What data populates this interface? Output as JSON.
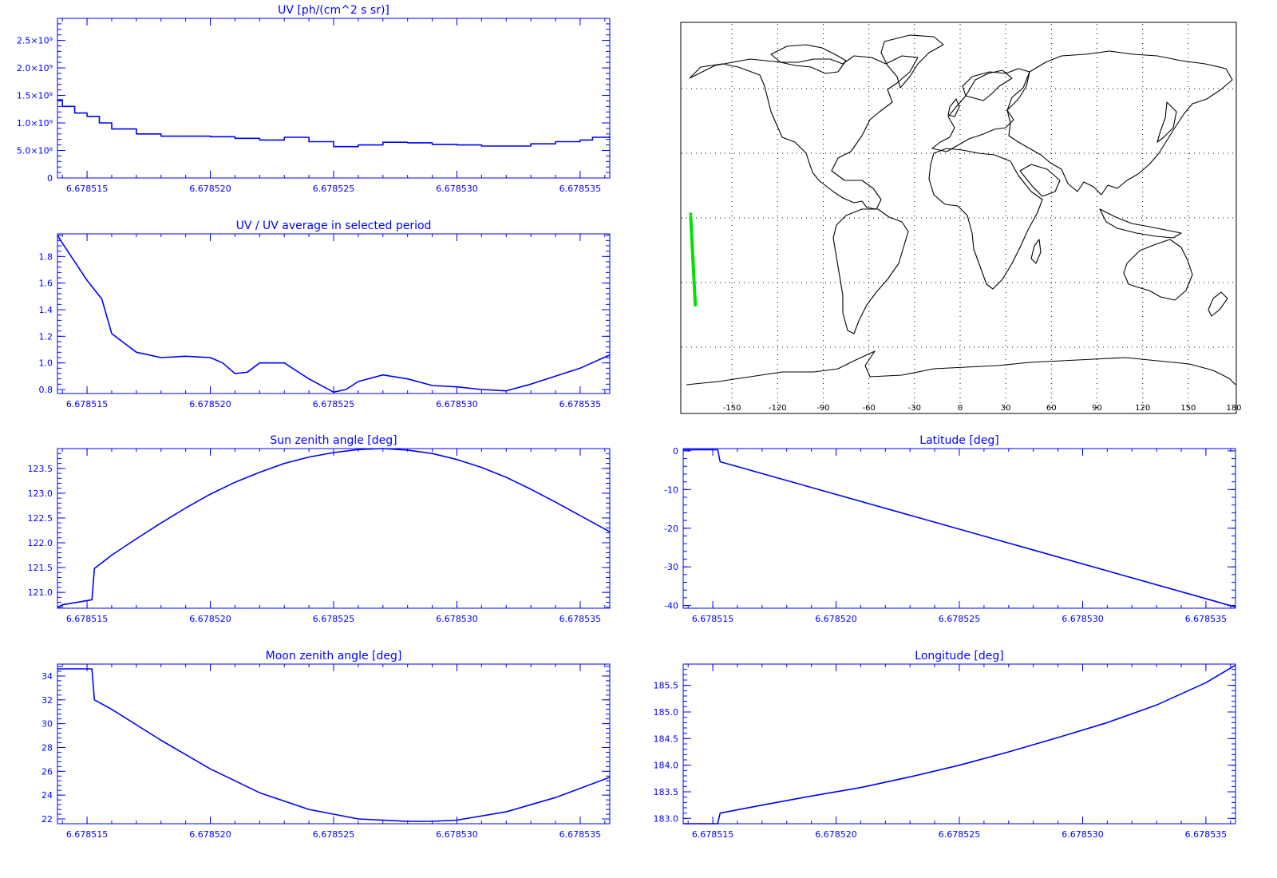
{
  "chart_data": [
    {
      "id": "uv",
      "type": "line",
      "title": "UV [ph/(cm^2 s sr)]",
      "xlim": [
        6.6785138,
        6.6785362
      ],
      "ylim": [
        0,
        2900000000.0
      ],
      "x_ticks": [
        6.678515,
        6.67852,
        6.678525,
        6.67853,
        6.678535
      ],
      "x_tick_labels": [
        "6.678515",
        "6.678520",
        "6.678525",
        "6.678530",
        "6.678535"
      ],
      "y_ticks": [
        0,
        500000000.0,
        1000000000.0,
        1500000000.0,
        2000000000.0,
        2500000000.0
      ],
      "y_tick_labels": [
        "0",
        "5.0×10⁸",
        "1.0×10⁹",
        "1.5×10⁹",
        "2.0×10⁹",
        "2.5×10⁹"
      ],
      "line_color": "#0000ff",
      "step": true,
      "x": [
        6.6785138,
        6.678514,
        6.6785145,
        6.678515,
        6.6785155,
        6.678516,
        6.678517,
        6.678518,
        6.678519,
        6.67852,
        6.678521,
        6.678522,
        6.678523,
        6.678524,
        6.678525,
        6.678526,
        6.678527,
        6.678528,
        6.678529,
        6.67853,
        6.678531,
        6.678532,
        6.678533,
        6.678534,
        6.678535,
        6.6785355,
        6.6785362
      ],
      "y": [
        1420000000.0,
        1300000000.0,
        1180000000.0,
        1120000000.0,
        1000000000.0,
        890000000.0,
        800000000.0,
        760000000.0,
        760000000.0,
        750000000.0,
        720000000.0,
        690000000.0,
        740000000.0,
        660000000.0,
        570000000.0,
        600000000.0,
        650000000.0,
        640000000.0,
        610000000.0,
        600000000.0,
        580000000.0,
        580000000.0,
        620000000.0,
        660000000.0,
        690000000.0,
        740000000.0,
        760000000.0
      ]
    },
    {
      "id": "uv-ratio",
      "type": "line",
      "title": "UV / UV average in selected period",
      "xlim": [
        6.6785138,
        6.6785362
      ],
      "ylim": [
        0.77,
        1.97
      ],
      "x_ticks": [
        6.678515,
        6.67852,
        6.678525,
        6.67853,
        6.678535
      ],
      "x_tick_labels": [
        "6.678515",
        "6.678520",
        "6.678525",
        "6.678530",
        "6.678535"
      ],
      "y_ticks": [
        0.8,
        1.0,
        1.2,
        1.4,
        1.6,
        1.8
      ],
      "y_tick_labels": [
        "0.8",
        "1.0",
        "1.2",
        "1.4",
        "1.6",
        "1.8"
      ],
      "line_color": "#0000ff",
      "x": [
        6.6785138,
        6.678514,
        6.678515,
        6.6785156,
        6.678516,
        6.678517,
        6.678518,
        6.678519,
        6.67852,
        6.6785205,
        6.678521,
        6.6785215,
        6.678522,
        6.678523,
        6.678524,
        6.678525,
        6.6785255,
        6.678526,
        6.678527,
        6.678528,
        6.678529,
        6.67853,
        6.678531,
        6.678532,
        6.678533,
        6.678534,
        6.678535,
        6.6785362
      ],
      "y": [
        1.96,
        1.9,
        1.62,
        1.48,
        1.22,
        1.08,
        1.04,
        1.05,
        1.04,
        1.0,
        0.92,
        0.93,
        1.0,
        1.0,
        0.88,
        0.78,
        0.8,
        0.86,
        0.91,
        0.88,
        0.83,
        0.82,
        0.8,
        0.79,
        0.84,
        0.9,
        0.96,
        1.06
      ]
    },
    {
      "id": "sun-zenith",
      "type": "line",
      "title": "Sun zenith angle [deg]",
      "xlim": [
        6.6785138,
        6.6785362
      ],
      "ylim": [
        120.68,
        123.9
      ],
      "x_ticks": [
        6.678515,
        6.67852,
        6.678525,
        6.67853,
        6.678535
      ],
      "x_tick_labels": [
        "6.678515",
        "6.678520",
        "6.678525",
        "6.678530",
        "6.678535"
      ],
      "y_ticks": [
        121.0,
        121.5,
        122.0,
        122.5,
        123.0,
        123.5
      ],
      "y_tick_labels": [
        "121.0",
        "121.5",
        "122.0",
        "122.5",
        "123.0",
        "123.5"
      ],
      "line_color": "#0000ff",
      "x": [
        6.6785138,
        6.678514,
        6.6785152,
        6.6785153,
        6.678516,
        6.678517,
        6.678518,
        6.678519,
        6.67852,
        6.678521,
        6.678522,
        6.678523,
        6.678524,
        6.678525,
        6.678526,
        6.678527,
        6.678528,
        6.678529,
        6.67853,
        6.678531,
        6.678532,
        6.678533,
        6.678534,
        6.678535,
        6.6785362
      ],
      "y": [
        120.7,
        120.75,
        120.85,
        121.48,
        121.75,
        122.08,
        122.4,
        122.7,
        122.98,
        123.22,
        123.42,
        123.6,
        123.73,
        123.82,
        123.88,
        123.9,
        123.87,
        123.8,
        123.68,
        123.52,
        123.32,
        123.08,
        122.82,
        122.55,
        122.22
      ]
    },
    {
      "id": "latitude",
      "type": "line",
      "title": "Latitude [deg]",
      "xlim": [
        6.6785138,
        6.6785362
      ],
      "ylim": [
        -40.7,
        0.6
      ],
      "x_ticks": [
        6.678515,
        6.67852,
        6.678525,
        6.67853,
        6.678535
      ],
      "x_tick_labels": [
        "6.678515",
        "6.678520",
        "6.678525",
        "6.678530",
        "6.678535"
      ],
      "y_ticks": [
        -40,
        -30,
        -20,
        -10,
        0
      ],
      "y_tick_labels": [
        "-40",
        "-30",
        "-20",
        "-10",
        "0"
      ],
      "line_color": "#0000ff",
      "x": [
        6.6785138,
        6.6785152,
        6.6785153,
        6.6785362
      ],
      "y": [
        0.3,
        0.3,
        -2.8,
        -40.4
      ]
    },
    {
      "id": "moon-zenith",
      "type": "line",
      "title": "Moon zenith angle [deg]",
      "xlim": [
        6.6785138,
        6.6785362
      ],
      "ylim": [
        21.6,
        35.0
      ],
      "x_ticks": [
        6.678515,
        6.67852,
        6.678525,
        6.67853,
        6.678535
      ],
      "x_tick_labels": [
        "6.678515",
        "6.678520",
        "6.678525",
        "6.678530",
        "6.678535"
      ],
      "y_ticks": [
        22,
        24,
        26,
        28,
        30,
        32,
        34
      ],
      "y_tick_labels": [
        "22",
        "24",
        "26",
        "28",
        "30",
        "32",
        "34"
      ],
      "line_color": "#0000ff",
      "x": [
        6.6785138,
        6.6785152,
        6.6785153,
        6.678516,
        6.678518,
        6.67852,
        6.678522,
        6.678524,
        6.678526,
        6.678528,
        6.678529,
        6.67853,
        6.678532,
        6.678534,
        6.6785362
      ],
      "y": [
        34.6,
        34.6,
        32.0,
        31.2,
        28.6,
        26.2,
        24.2,
        22.8,
        22.0,
        21.8,
        21.8,
        21.9,
        22.6,
        23.8,
        25.5
      ]
    },
    {
      "id": "longitude",
      "type": "line",
      "title": "Longitude [deg]",
      "xlim": [
        6.6785138,
        6.6785362
      ],
      "ylim": [
        182.9,
        185.9
      ],
      "x_ticks": [
        6.678515,
        6.67852,
        6.678525,
        6.67853,
        6.678535
      ],
      "x_tick_labels": [
        "6.678515",
        "6.678520",
        "6.678525",
        "6.678530",
        "6.678535"
      ],
      "y_ticks": [
        183.0,
        183.5,
        184.0,
        184.5,
        185.0,
        185.5
      ],
      "y_tick_labels": [
        "183.0",
        "183.5",
        "184.0",
        "184.5",
        "185.0",
        "185.5"
      ],
      "line_color": "#0000ff",
      "x": [
        6.6785138,
        6.6785152,
        6.6785153,
        6.678517,
        6.678519,
        6.678521,
        6.678523,
        6.678525,
        6.678527,
        6.678529,
        6.678531,
        6.678533,
        6.678535,
        6.6785362
      ],
      "y": [
        182.9,
        182.9,
        183.1,
        183.25,
        183.42,
        183.58,
        183.78,
        184.0,
        184.25,
        184.52,
        184.8,
        185.13,
        185.55,
        185.88
      ]
    }
  ],
  "map": {
    "xlim": [
      -180,
      180
    ],
    "ylim": [
      -90,
      90
    ],
    "x_ticks": [
      -150,
      -120,
      -90,
      -60,
      -30,
      0,
      30,
      60,
      90,
      120,
      150,
      180
    ],
    "x_tick_labels": [
      "-150",
      "-120",
      "-90",
      "-60",
      "-30",
      "0",
      "30",
      "60",
      "90",
      "120",
      "150",
      "180"
    ],
    "grid_lon": [
      -150,
      -120,
      -90,
      -60,
      -30,
      0,
      30,
      60,
      90,
      120,
      150
    ],
    "grid_lat": [
      -60,
      -30,
      0,
      30,
      60
    ],
    "coast_color": "#000000",
    "track_color": "#00e000",
    "track": {
      "lon": [
        -177.1,
        -176.0,
        -174.1
      ],
      "lat": [
        0.3,
        -15.0,
        -40.4
      ]
    }
  }
}
